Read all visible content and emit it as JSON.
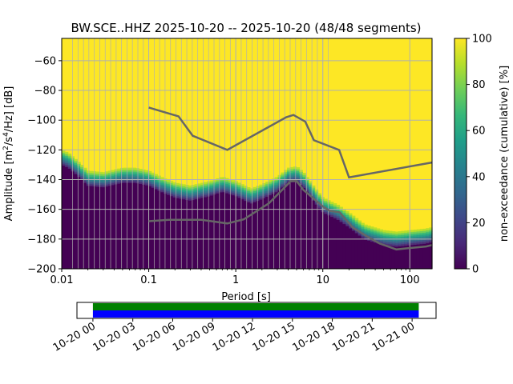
{
  "colors": {
    "background": "#ffffff",
    "yellow": "#fde725",
    "grid": "#b0b0b0",
    "model_line": "#666666",
    "timeline_green": "#008000",
    "timeline_blue": "#0000ff",
    "timeline_frame": "#000000"
  },
  "colormap": [
    "#440154",
    "#482878",
    "#3e4989",
    "#31688e",
    "#26828e",
    "#1f9e89",
    "#35b779",
    "#6ece58",
    "#b5de2b",
    "#fde725"
  ],
  "chart_data": [
    {
      "type": "heatmap",
      "title": "BW.SCE..HHZ   2025-10-20 -- 2025-10-20  (48/48 segments)",
      "xlabel": "Period [s]",
      "ylabel_parts": {
        "prefix": "Amplitude [m",
        "sup1": "2",
        "mid": "/s",
        "sup2": "4",
        "suffix": "/Hz] [dB]"
      },
      "xscale": "log",
      "xlim": [
        0.01,
        180
      ],
      "ylim": [
        -200,
        -45
      ],
      "xticks": [
        {
          "value": 0.01,
          "label": "0.01"
        },
        {
          "value": 0.1,
          "label": "0.1"
        },
        {
          "value": 1,
          "label": "1"
        },
        {
          "value": 10,
          "label": "10"
        },
        {
          "value": 100,
          "label": "100"
        }
      ],
      "yticks": [
        {
          "value": -60,
          "label": "−60"
        },
        {
          "value": -80,
          "label": "−80"
        },
        {
          "value": -100,
          "label": "−100"
        },
        {
          "value": -120,
          "label": "−120"
        },
        {
          "value": -140,
          "label": "−140"
        },
        {
          "value": -160,
          "label": "−160"
        },
        {
          "value": -180,
          "label": "−180"
        },
        {
          "value": -200,
          "label": "−200"
        }
      ],
      "grid": true,
      "colorbar": {
        "label": "non-exceedance (cumulative) [%]",
        "range": [
          0,
          100
        ],
        "ticks": [
          {
            "value": 0,
            "label": "0"
          },
          {
            "value": 20,
            "label": "20"
          },
          {
            "value": 40,
            "label": "40"
          },
          {
            "value": 60,
            "label": "60"
          },
          {
            "value": 80,
            "label": "80"
          },
          {
            "value": 100,
            "label": "100"
          }
        ]
      },
      "psd_lower_envelope": {
        "period": [
          0.01,
          0.012,
          0.015,
          0.02,
          0.03,
          0.05,
          0.07,
          0.1,
          0.15,
          0.2,
          0.3,
          0.5,
          0.7,
          1,
          1.5,
          2,
          3,
          4,
          5,
          6,
          8,
          10,
          15,
          20,
          30,
          50,
          70,
          100,
          150,
          180
        ],
        "db": [
          -130,
          -132,
          -137,
          -144,
          -145,
          -142,
          -142,
          -144,
          -149,
          -152,
          -154,
          -151,
          -148,
          -151,
          -156,
          -153,
          -148,
          -142,
          -141,
          -145,
          -155,
          -162,
          -167,
          -172,
          -180,
          -184,
          -185,
          -184,
          -183,
          -182
        ]
      },
      "psd_band_width_db": 10,
      "new_low_noise_model": {
        "period": [
          0.1,
          0.17,
          0.4,
          0.8,
          1.24,
          2.4,
          4.3,
          5,
          6,
          10,
          12,
          15.6,
          21.9,
          31.6,
          45,
          70,
          101,
          154,
          180
        ],
        "db": [
          -168,
          -167,
          -167,
          -169.5,
          -166.7,
          -156,
          -141,
          -141,
          -147,
          -158,
          -161,
          -162,
          -172,
          -178,
          -183,
          -187,
          -186,
          -185,
          -184
        ]
      },
      "new_high_noise_model": {
        "period": [
          0.1,
          0.22,
          0.32,
          0.8,
          3.8,
          4.6,
          6.3,
          7.9,
          15.4,
          20,
          180
        ],
        "db": [
          -91.5,
          -97.4,
          -110.5,
          -120,
          -98,
          -96.5,
          -101,
          -113.5,
          -120,
          -138.5,
          -128.5
        ]
      },
      "segment_periods": [
        0.0133,
        0.0154,
        0.0178,
        0.0205,
        0.0237,
        0.0274,
        0.0316,
        0.0365,
        0.0422,
        0.0487,
        0.0562,
        0.0649,
        0.075,
        0.0866,
        0.1,
        0.1155,
        0.1334,
        0.154,
        0.1778,
        0.2054,
        0.2371,
        0.2738,
        0.3162,
        0.3652,
        0.4217,
        0.487,
        0.5623,
        0.6494,
        0.7499,
        0.866,
        1.0,
        1.1548,
        1.3335,
        1.54,
        1.7783,
        2.0535,
        2.3714,
        2.7384,
        3.1623,
        3.6517,
        4.217,
        4.8697,
        5.6234,
        6.4938,
        7.4989,
        8.6596,
        10.0,
        11.548
      ]
    },
    {
      "type": "timeline",
      "tick_labels": [
        "10-20 00",
        "10-20 03",
        "10-20 06",
        "10-20 09",
        "10-20 12",
        "10-20 15",
        "10-20 18",
        "10-20 21",
        "10-21 00"
      ],
      "tick_hours": [
        0,
        3,
        6,
        9,
        12,
        15,
        18,
        21,
        24
      ],
      "range_hours": [
        -1.2,
        25.8
      ],
      "data_coverage_hours": [
        0,
        24.5
      ],
      "segment_coverage_hours": [
        0,
        24.5
      ]
    }
  ]
}
